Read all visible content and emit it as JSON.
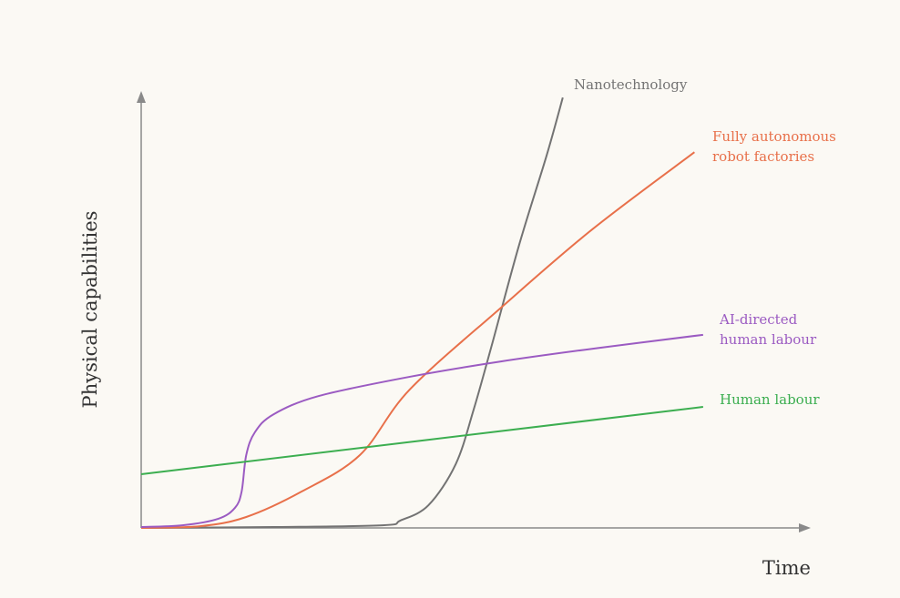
{
  "chart_data": {
    "type": "line",
    "xlabel": "Time",
    "ylabel": "Physical capabilities",
    "xlim": [
      0,
      100
    ],
    "ylim": [
      0,
      100
    ],
    "series": [
      {
        "name": "Nanotechnology",
        "label": [
          "Nanotechnology"
        ],
        "color": "#737373",
        "x": [
          0,
          19.9,
          36.3,
          39.0,
          43.2,
          47.3,
          50.0,
          52.7,
          56.8,
          61.0,
          63.4
        ],
        "values": [
          0,
          0.2,
          0.6,
          1.7,
          5.2,
          14.6,
          27.1,
          41.7,
          64.6,
          85.4,
          98.5
        ]
      },
      {
        "name": "Fully autonomous robot factories",
        "label": [
          "Fully autonomous",
          "robot factories"
        ],
        "color": "#e8704a",
        "x": [
          0,
          8.9,
          15.8,
          24.1,
          32.9,
          40.4,
          54.1,
          67.8,
          83.2
        ],
        "values": [
          0,
          0.4,
          2.5,
          8.3,
          16.7,
          31.7,
          50.4,
          68.3,
          86.0
        ]
      },
      {
        "name": "AI-directed human labour",
        "label": [
          "AI-directed",
          "human labour"
        ],
        "color": "#9b5bc2",
        "x": [
          0,
          6.2,
          11.6,
          14.1,
          15.1,
          15.8,
          17.1,
          19.9,
          26.7,
          40.4,
          54.1,
          67.8,
          84.5
        ],
        "values": [
          0.2,
          0.6,
          2.1,
          4.6,
          8.3,
          16.7,
          21.9,
          26.0,
          30.2,
          34.6,
          38.1,
          41.0,
          44.2
        ]
      },
      {
        "name": "Human labour",
        "label": [
          "Human labour"
        ],
        "color": "#3cae50",
        "x": [
          0,
          84.5
        ],
        "values": [
          12.3,
          27.7
        ]
      }
    ]
  }
}
